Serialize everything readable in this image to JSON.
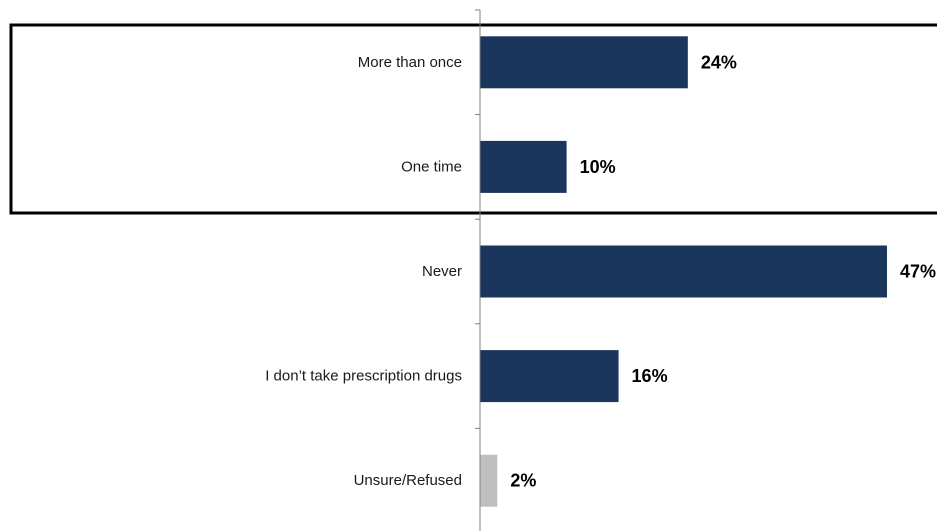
{
  "chart_data": {
    "type": "bar",
    "orientation": "horizontal",
    "categories": [
      "More than once",
      "One time",
      "Never",
      "I don’t take prescription drugs",
      "Unsure/Refused"
    ],
    "values": [
      24,
      10,
      47,
      16,
      2
    ],
    "value_labels": [
      "24%",
      "10%",
      "47%",
      "16%",
      "2%"
    ],
    "value_unit": "%",
    "xlim": [
      0,
      47
    ],
    "grid": false,
    "legend": "none",
    "highlight_box_categories": [
      "More than once",
      "One time"
    ],
    "colors": {
      "primary_bar": "#1b365d",
      "unsure_bar": "#bfbfbf",
      "axis": "#7f7f7f",
      "highlight_box": "#000000"
    }
  }
}
